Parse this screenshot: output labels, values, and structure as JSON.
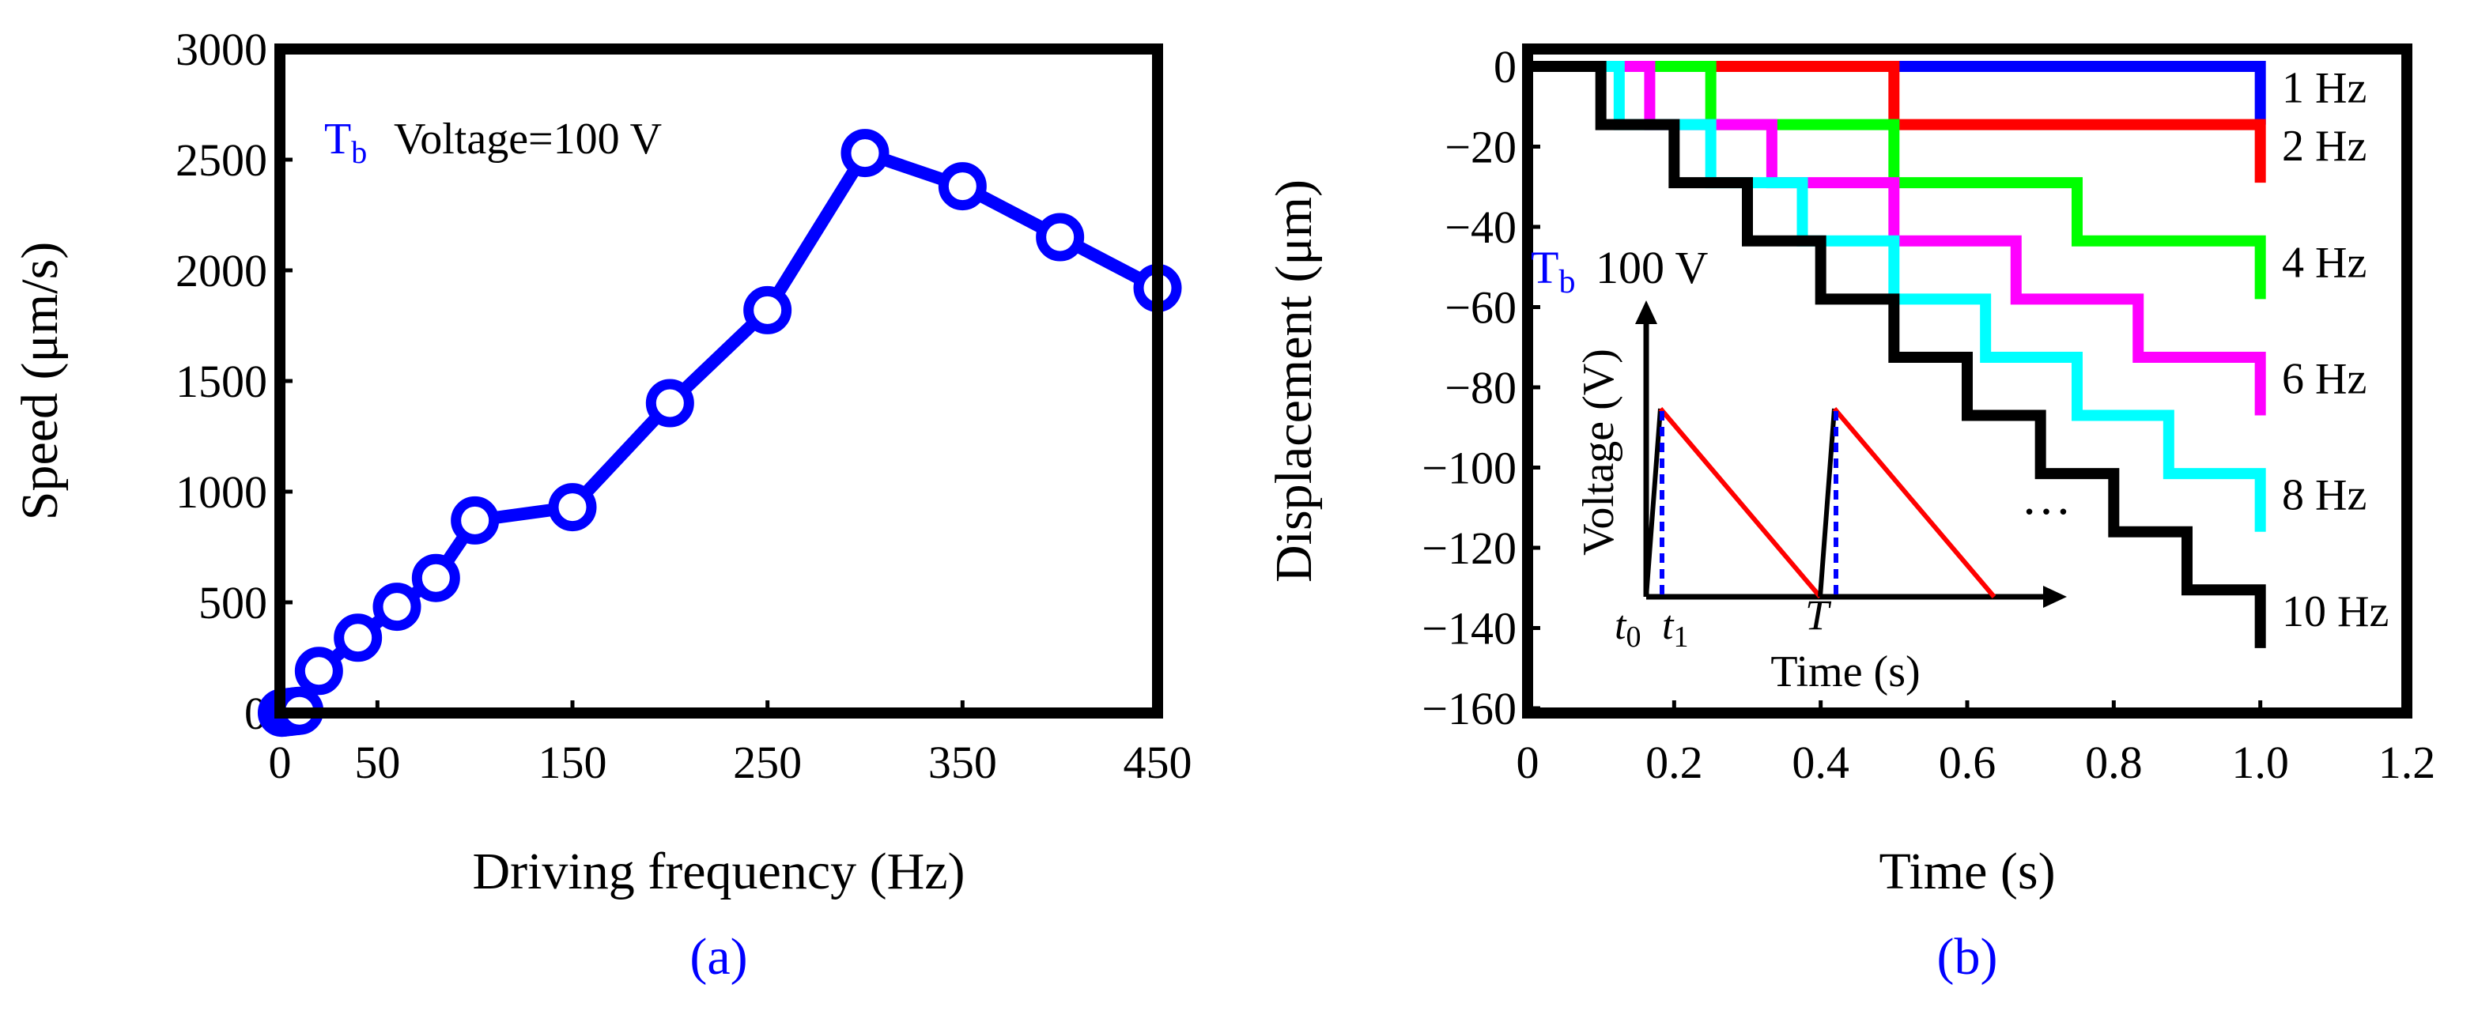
{
  "chart_data": [
    {
      "type": "line",
      "panel_label": "(a)",
      "xlabel": "Driving frequency (Hz)",
      "ylabel": "Speed (μm/s)",
      "xlim": [
        0,
        450
      ],
      "ylim": [
        0,
        3000
      ],
      "xticks": [
        0,
        50,
        150,
        250,
        350,
        450
      ],
      "yticks": [
        0,
        500,
        1000,
        1500,
        2000,
        2500,
        3000
      ],
      "annotation": {
        "symbol": "T",
        "subscript": "b",
        "text": "Voltage=100 V"
      },
      "series": [
        {
          "name": "Tb",
          "color": "#0000ff",
          "marker": "circle",
          "x": [
            1,
            2,
            4,
            6,
            8,
            10,
            20,
            40,
            60,
            80,
            100,
            150,
            200,
            250,
            300,
            350,
            400,
            450
          ],
          "y": [
            1,
            2,
            4,
            6,
            8,
            10,
            190,
            340,
            480,
            610,
            870,
            930,
            1400,
            1820,
            2530,
            2380,
            2150,
            1920
          ]
        }
      ]
    },
    {
      "type": "line",
      "panel_label": "(b)",
      "xlabel": "Time (s)",
      "ylabel": "Displacement (μm)",
      "xlim": [
        0,
        1.2
      ],
      "ylim": [
        -160,
        5
      ],
      "xticks": [
        0,
        0.2,
        0.4,
        0.6,
        0.8,
        1.0,
        1.2
      ],
      "yticks": [
        0,
        -20,
        -40,
        -60,
        -80,
        -100,
        -120,
        -140,
        -160
      ],
      "step_height_um": 14.5,
      "series": [
        {
          "name": "1 Hz",
          "color": "#0000ff",
          "frequency": 1
        },
        {
          "name": "2 Hz",
          "color": "#ff0000",
          "frequency": 2
        },
        {
          "name": "4 Hz",
          "color": "#00ff00",
          "frequency": 4
        },
        {
          "name": "6 Hz",
          "color": "#ff00ff",
          "frequency": 6
        },
        {
          "name": "8 Hz",
          "color": "#00ffff",
          "frequency": 8
        },
        {
          "name": "10 Hz",
          "color": "#000000",
          "frequency": 10
        }
      ],
      "ellipsis": "…",
      "inset": {
        "title": {
          "symbol": "T",
          "subscript": "b",
          "text": "100 V"
        },
        "xlabel": "Time (s)",
        "ylabel": "Voltage (V)",
        "tick_t0": "t",
        "tick_t0_sub": "0",
        "tick_t1": "t",
        "tick_t1_sub": "1",
        "tick_T": "T"
      }
    }
  ]
}
